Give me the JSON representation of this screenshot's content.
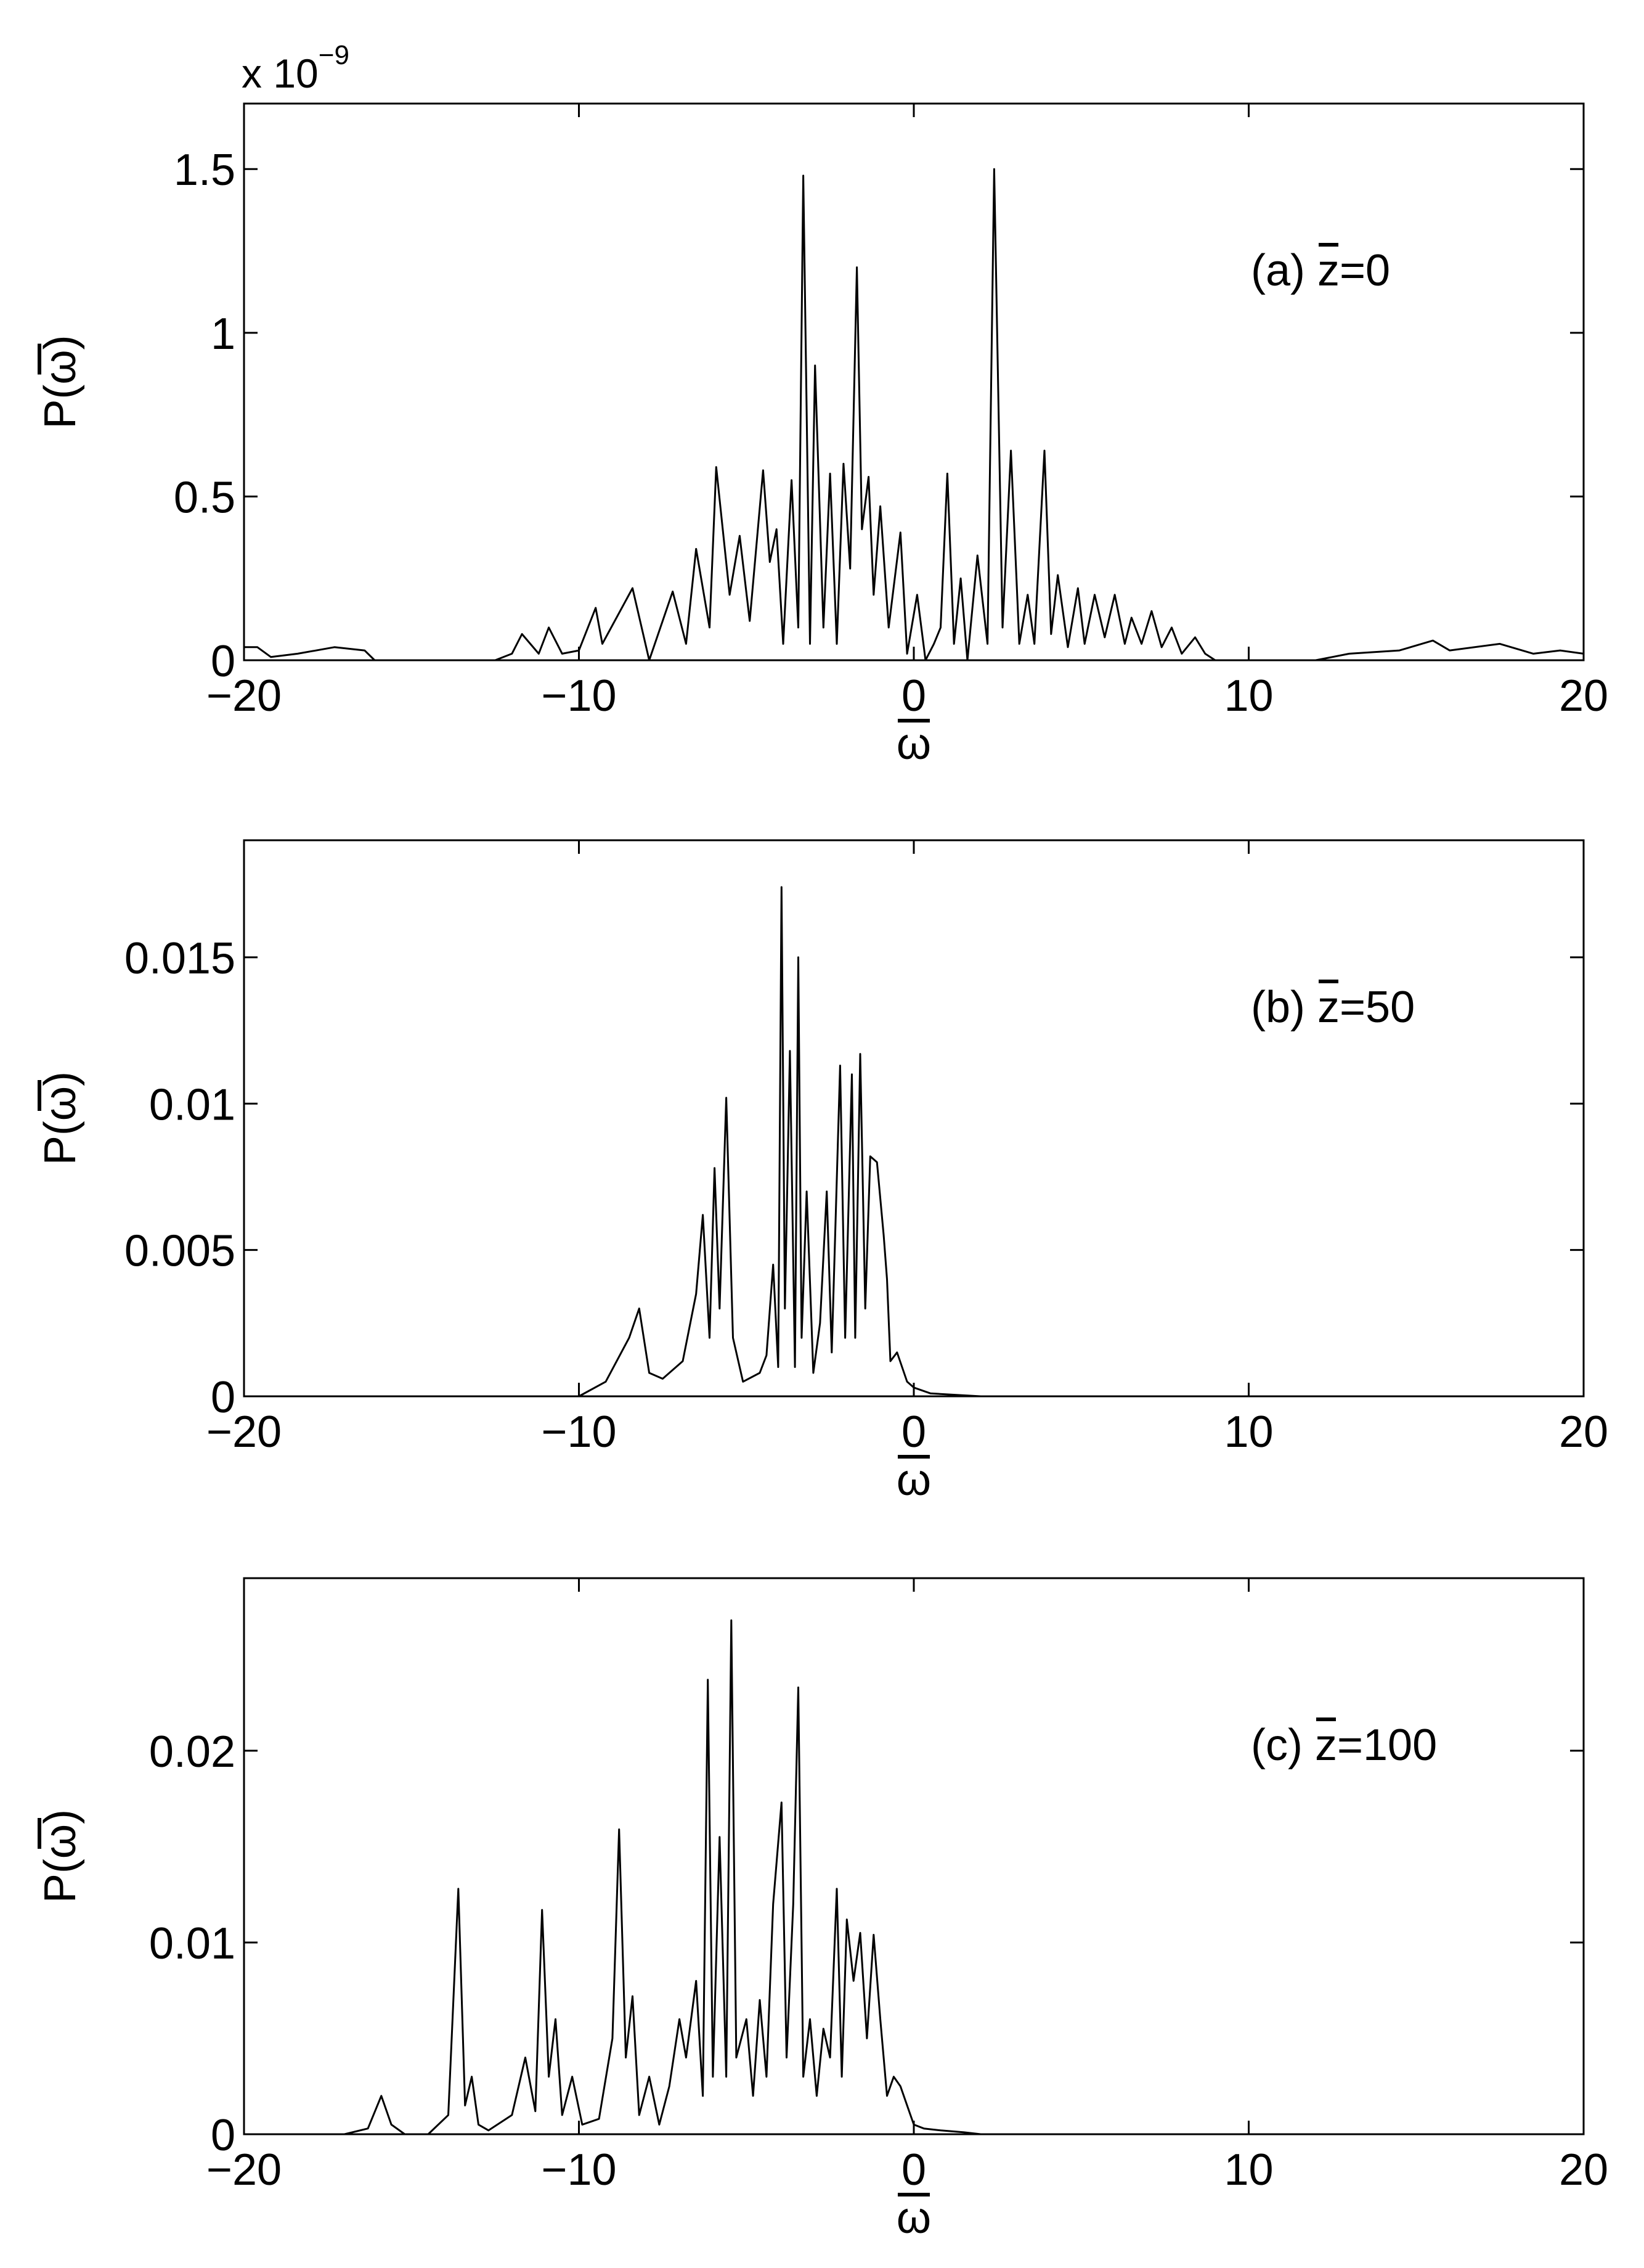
{
  "chart_data": [
    {
      "id": "a",
      "type": "line",
      "xlabel": "ω",
      "ylabel": "P(ω)",
      "annotation": {
        "prefix": "(a) ",
        "var": "z",
        "value": "=0"
      },
      "exponent": {
        "base": "x 10",
        "power": "−9"
      },
      "xlim": [
        -20,
        20
      ],
      "ylim": [
        0,
        1.7
      ],
      "xticks": [
        -20,
        -10,
        0,
        10,
        20
      ],
      "xtick_labels": [
        "−20",
        "−10",
        "0",
        "10",
        "20"
      ],
      "yticks": [
        0,
        0.5,
        1,
        1.5
      ],
      "ytick_labels": [
        "0",
        "0.5",
        "1",
        "1.5"
      ],
      "grid": false,
      "series": [
        {
          "x": [
            -20,
            -19.6,
            -19.2,
            -18.4,
            -17.3,
            -16.4,
            -16.1,
            -12.5,
            -12.0,
            -11.7,
            -11.2,
            -10.9,
            -10.5,
            -10.0,
            -9.5,
            -9.3,
            -8.4,
            -7.9,
            -7.2,
            -6.8,
            -6.5,
            -6.1,
            -5.9,
            -5.5,
            -5.2,
            -4.9,
            -4.5,
            -4.3,
            -4.1,
            -3.9,
            -3.65,
            -3.45,
            -3.3,
            -3.1,
            -2.95,
            -2.7,
            -2.5,
            -2.3,
            -2.1,
            -1.9,
            -1.7,
            -1.55,
            -1.35,
            -1.2,
            -1.0,
            -0.75,
            -0.4,
            -0.2,
            0.1,
            0.35,
            0.6,
            0.8,
            1.0,
            1.2,
            1.4,
            1.6,
            1.9,
            2.2,
            2.4,
            2.65,
            2.9,
            3.15,
            3.4,
            3.6,
            3.9,
            4.1,
            4.3,
            4.6,
            4.9,
            5.1,
            5.4,
            5.7,
            6.0,
            6.3,
            6.5,
            6.8,
            7.1,
            7.4,
            7.7,
            8.0,
            8.4,
            8.7,
            9.0,
            12.0,
            13.0,
            14.5,
            15.5,
            16.0,
            17.5,
            18.5,
            19.3,
            20
          ],
          "y": [
            0.04,
            0.04,
            0.01,
            0.02,
            0.04,
            0.03,
            0.0,
            0.0,
            0.02,
            0.08,
            0.02,
            0.1,
            0.02,
            0.03,
            0.16,
            0.05,
            0.22,
            0.0,
            0.21,
            0.05,
            0.34,
            0.1,
            0.59,
            0.2,
            0.38,
            0.12,
            0.58,
            0.3,
            0.4,
            0.05,
            0.55,
            0.1,
            1.48,
            0.05,
            0.9,
            0.1,
            0.57,
            0.05,
            0.6,
            0.28,
            1.2,
            0.4,
            0.56,
            0.2,
            0.47,
            0.1,
            0.39,
            0.02,
            0.2,
            0.0,
            0.05,
            0.1,
            0.57,
            0.05,
            0.25,
            0.0,
            0.32,
            0.05,
            1.5,
            0.1,
            0.64,
            0.05,
            0.2,
            0.05,
            0.64,
            0.08,
            0.26,
            0.04,
            0.22,
            0.05,
            0.2,
            0.07,
            0.2,
            0.05,
            0.13,
            0.05,
            0.15,
            0.04,
            0.1,
            0.02,
            0.07,
            0.02,
            0.0,
            0.0,
            0.02,
            0.03,
            0.06,
            0.03,
            0.05,
            0.02,
            0.03,
            0.02
          ]
        }
      ]
    },
    {
      "id": "b",
      "type": "line",
      "xlabel": "ω",
      "ylabel": "P(ω)",
      "annotation": {
        "prefix": "(b) ",
        "var": "z",
        "value": "=50"
      },
      "xlim": [
        -20,
        20
      ],
      "ylim": [
        0,
        0.019
      ],
      "xticks": [
        -20,
        -10,
        0,
        10,
        20
      ],
      "xtick_labels": [
        "−20",
        "−10",
        "0",
        "10",
        "20"
      ],
      "yticks": [
        0,
        0.005,
        0.01,
        0.015
      ],
      "ytick_labels": [
        "0",
        "0.005",
        "0.01",
        "0.015"
      ],
      "grid": false,
      "series": [
        {
          "x": [
            -20,
            -10,
            -9.2,
            -8.5,
            -8.2,
            -7.9,
            -7.5,
            -7.2,
            -6.9,
            -6.5,
            -6.3,
            -6.1,
            -5.95,
            -5.8,
            -5.6,
            -5.4,
            -5.1,
            -4.6,
            -4.4,
            -4.2,
            -4.05,
            -3.95,
            -3.85,
            -3.7,
            -3.55,
            -3.45,
            -3.35,
            -3.2,
            -3.0,
            -2.8,
            -2.6,
            -2.45,
            -2.2,
            -2.05,
            -1.85,
            -1.75,
            -1.6,
            -1.45,
            -1.3,
            -1.1,
            -0.9,
            -0.8,
            -0.7,
            -0.5,
            -0.2,
            0.0,
            0.5,
            2.0,
            20
          ],
          "y": [
            0.0,
            0.0,
            0.0005,
            0.002,
            0.003,
            0.0008,
            0.0006,
            0.0009,
            0.0012,
            0.0035,
            0.0062,
            0.002,
            0.0078,
            0.003,
            0.0102,
            0.002,
            0.0005,
            0.0008,
            0.0014,
            0.0045,
            0.001,
            0.0174,
            0.003,
            0.0118,
            0.001,
            0.015,
            0.002,
            0.007,
            0.0008,
            0.0025,
            0.007,
            0.0015,
            0.0113,
            0.002,
            0.011,
            0.002,
            0.0117,
            0.003,
            0.0082,
            0.008,
            0.0055,
            0.004,
            0.0012,
            0.0015,
            0.0005,
            0.0003,
            0.0001,
            0.0,
            0.0
          ]
        }
      ]
    },
    {
      "id": "c",
      "type": "line",
      "xlabel": "ω",
      "ylabel": "P(ω)",
      "annotation": {
        "prefix": "(c) ",
        "var": "z",
        "value": "=100"
      },
      "xlim": [
        -20,
        20
      ],
      "ylim": [
        0,
        0.029
      ],
      "xticks": [
        -20,
        -10,
        0,
        10,
        20
      ],
      "xtick_labels": [
        "−20",
        "−10",
        "0",
        "10",
        "20"
      ],
      "yticks": [
        0,
        0.01,
        0.02
      ],
      "ytick_labels": [
        "0",
        "0.01",
        "0.02"
      ],
      "grid": false,
      "series": [
        {
          "x": [
            -20,
            -17,
            -16.3,
            -15.9,
            -15.6,
            -15.2,
            -14.5,
            -13.9,
            -13.6,
            -13.4,
            -13.2,
            -13.0,
            -12.7,
            -12.0,
            -11.6,
            -11.3,
            -11.1,
            -10.9,
            -10.7,
            -10.5,
            -10.2,
            -9.9,
            -9.4,
            -9.0,
            -8.8,
            -8.6,
            -8.4,
            -8.2,
            -7.9,
            -7.6,
            -7.3,
            -7.0,
            -6.8,
            -6.5,
            -6.3,
            -6.15,
            -6.0,
            -5.8,
            -5.6,
            -5.45,
            -5.3,
            -5.0,
            -4.8,
            -4.6,
            -4.4,
            -4.2,
            -3.95,
            -3.8,
            -3.6,
            -3.45,
            -3.3,
            -3.1,
            -2.9,
            -2.7,
            -2.5,
            -2.3,
            -2.15,
            -2.0,
            -1.8,
            -1.6,
            -1.4,
            -1.2,
            -1.0,
            -0.8,
            -0.6,
            -0.4,
            -0.2,
            0.0,
            0.3,
            0.8,
            1.5,
            2.0,
            20
          ],
          "y": [
            0.0,
            0.0,
            0.0003,
            0.002,
            0.0005,
            0.0,
            0.0,
            0.001,
            0.0128,
            0.0015,
            0.003,
            0.0005,
            0.0002,
            0.001,
            0.004,
            0.0012,
            0.0117,
            0.003,
            0.006,
            0.001,
            0.003,
            0.0005,
            0.0008,
            0.005,
            0.0159,
            0.004,
            0.0072,
            0.001,
            0.003,
            0.0005,
            0.0025,
            0.006,
            0.004,
            0.008,
            0.002,
            0.0237,
            0.003,
            0.0155,
            0.003,
            0.0268,
            0.004,
            0.006,
            0.002,
            0.007,
            0.003,
            0.012,
            0.0173,
            0.004,
            0.012,
            0.0233,
            0.003,
            0.006,
            0.002,
            0.0055,
            0.004,
            0.0128,
            0.003,
            0.0112,
            0.008,
            0.0105,
            0.005,
            0.0104,
            0.006,
            0.002,
            0.003,
            0.0025,
            0.0015,
            0.0005,
            0.0003,
            0.0002,
            0.0001,
            0.0,
            0.0
          ]
        }
      ]
    }
  ]
}
